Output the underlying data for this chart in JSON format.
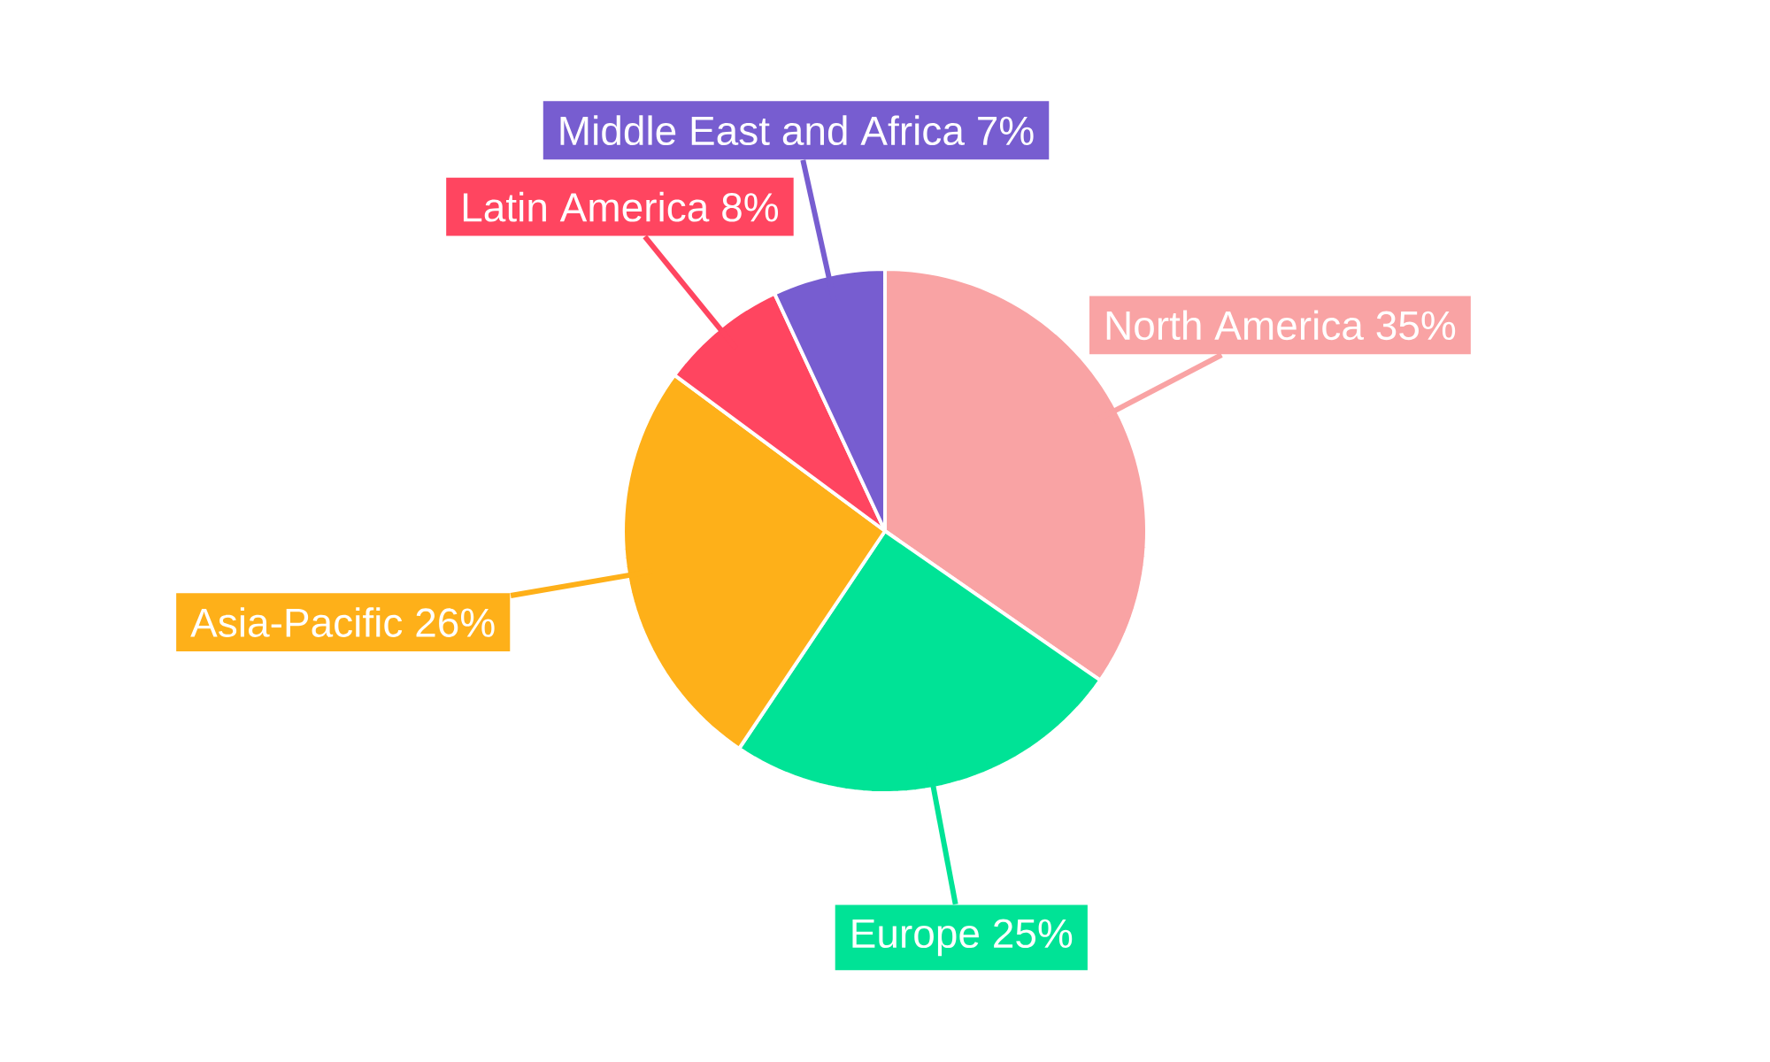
{
  "chart_data": {
    "type": "pie",
    "categories": [
      "North America",
      "Europe",
      "Asia-Pacific",
      "Latin America",
      "Middle East and Africa"
    ],
    "values": [
      35,
      25,
      26,
      8,
      7
    ],
    "value_labels": [
      "35%",
      "25%",
      "26%",
      "8%",
      "7%"
    ],
    "colors": [
      "#f9a3a4",
      "#00e396",
      "#feb019",
      "#ff4560",
      "#775dd0"
    ]
  }
}
